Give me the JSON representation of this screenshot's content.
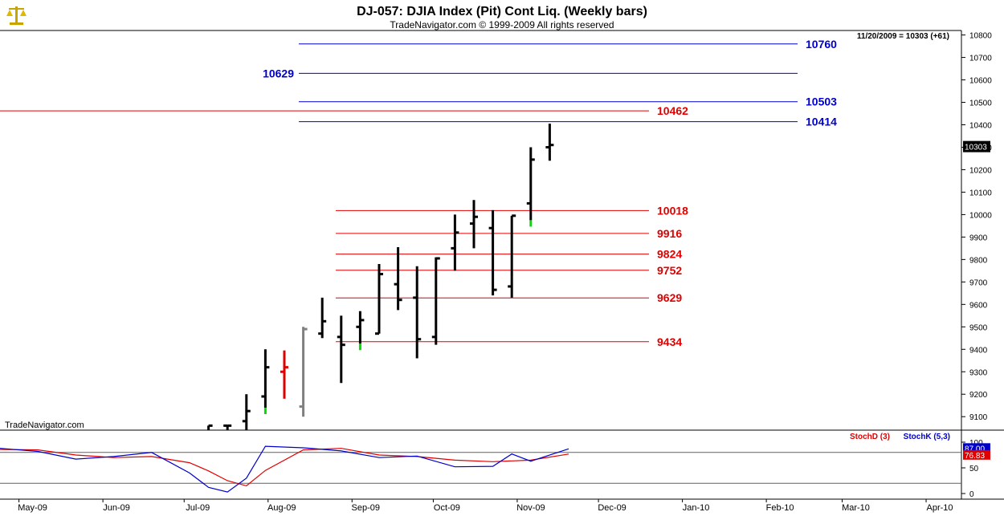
{
  "header": {
    "title": "DJ-057:  DJIA Index (Pit) Cont Liq.  (Weekly bars)",
    "copyright": "TradeNavigator.com © 1999-2009 All rights reserved"
  },
  "watermark": "TradeNavigator.com",
  "last_info": "11/20/2009 = 10303 (+61)",
  "last_price_label": "10303",
  "indicator_legend": {
    "stoch_d": "StochD (3)",
    "stoch_k": "StochK (5,3)"
  },
  "colors": {
    "blue_level": "#0000cc",
    "red_level": "#e00000",
    "bar": "#000000",
    "bar_red": "#e00000",
    "bar_gray": "#808080",
    "bar_green": "#00dd00",
    "stoch_d": "#e00000",
    "stoch_k": "#0000cc"
  },
  "chart_data": [
    {
      "type": "ohlc",
      "title": "DJ-057:  DJIA Index (Pit) Cont Liq.  (Weekly bars)",
      "ylim": [
        9040,
        10820
      ],
      "y_ticks": [
        9100,
        9200,
        9300,
        9400,
        9500,
        9600,
        9700,
        9800,
        9900,
        10000,
        10100,
        10200,
        10300,
        10400,
        10500,
        10600,
        10700,
        10800
      ],
      "x_labels": [
        "May-09",
        "Jun-09",
        "Jul-09",
        "Aug-09",
        "Sep-09",
        "Oct-09",
        "Nov-09",
        "Dec-09",
        "Jan-10",
        "Feb-10",
        "Mar-10",
        "Apr-10"
      ],
      "x_range": [
        "2009-04-24",
        "2010-04-09"
      ],
      "bars": [
        {
          "date": "2009-07-10",
          "open": 9020,
          "high": 9060,
          "low": 8990,
          "close": 9060,
          "color": "black"
        },
        {
          "date": "2009-07-17",
          "open": 9060,
          "high": 9060,
          "low": 9030,
          "close": 9060,
          "color": "black"
        },
        {
          "date": "2009-07-24",
          "open": 9080,
          "high": 9200,
          "low": 9030,
          "close": 9125,
          "color": "black"
        },
        {
          "date": "2009-07-31",
          "open": 9190,
          "high": 9400,
          "low": 9140,
          "close": 9320,
          "color": "black",
          "low_tick": "green"
        },
        {
          "date": "2009-08-07",
          "open": 9300,
          "high": 9395,
          "low": 9180,
          "close": 9320,
          "color": "red"
        },
        {
          "date": "2009-08-14",
          "open": 9145,
          "high": 9500,
          "low": 9100,
          "close": 9490,
          "color": "gray"
        },
        {
          "date": "2009-08-21",
          "open": 9470,
          "high": 9630,
          "low": 9450,
          "close": 9525,
          "color": "black"
        },
        {
          "date": "2009-08-28",
          "open": 9455,
          "high": 9550,
          "low": 9250,
          "close": 9420,
          "color": "black"
        },
        {
          "date": "2009-09-04",
          "open": 9500,
          "high": 9570,
          "low": 9425,
          "close": 9530,
          "color": "black",
          "low_tick": "green"
        },
        {
          "date": "2009-09-11",
          "open": 9470,
          "high": 9780,
          "low": 9470,
          "close": 9735,
          "color": "black"
        },
        {
          "date": "2009-09-18",
          "open": 9690,
          "high": 9855,
          "low": 9575,
          "close": 9620,
          "color": "black"
        },
        {
          "date": "2009-09-25",
          "open": 9630,
          "high": 9770,
          "low": 9360,
          "close": 9445,
          "color": "black"
        },
        {
          "date": "2009-10-02",
          "open": 9455,
          "high": 9810,
          "low": 9420,
          "close": 9805,
          "color": "black"
        },
        {
          "date": "2009-10-09",
          "open": 9850,
          "high": 10000,
          "low": 9750,
          "close": 9920,
          "color": "black"
        },
        {
          "date": "2009-10-16",
          "open": 9960,
          "high": 10065,
          "low": 9850,
          "close": 9990,
          "color": "black"
        },
        {
          "date": "2009-10-23",
          "open": 9940,
          "high": 10020,
          "low": 9640,
          "close": 9665,
          "color": "black"
        },
        {
          "date": "2009-10-30",
          "open": 9680,
          "high": 9995,
          "low": 9630,
          "close": 9995,
          "color": "black"
        },
        {
          "date": "2009-11-06",
          "open": 10050,
          "high": 10300,
          "low": 9975,
          "close": 10245,
          "color": "black",
          "low_tick": "green"
        },
        {
          "date": "2009-11-13",
          "open": 10300,
          "high": 10405,
          "low": 10240,
          "close": 10310,
          "color": "black"
        }
      ],
      "levels_blue": [
        10760,
        10629,
        10503,
        10414
      ],
      "levels_red": [
        10462,
        10018,
        9916,
        9824,
        9752,
        9629,
        9434
      ],
      "last_price": 10303
    },
    {
      "type": "line",
      "title": "",
      "ylim": [
        0,
        100
      ],
      "y_ticks": [
        0,
        50,
        100
      ],
      "horizontal_lines": [
        20,
        80
      ],
      "value_labels": {
        "stoch_k": "87.00",
        "stoch_d": "76.83"
      },
      "series": [
        {
          "name": "StochD (3)",
          "dates": [
            "2009-04-24",
            "2009-05-08",
            "2009-05-22",
            "2009-06-05",
            "2009-06-19",
            "2009-07-03",
            "2009-07-10",
            "2009-07-17",
            "2009-07-24",
            "2009-07-31",
            "2009-08-14",
            "2009-08-28",
            "2009-09-11",
            "2009-09-25",
            "2009-10-09",
            "2009-10-23",
            "2009-11-06",
            "2009-11-20"
          ],
          "values": [
            86,
            85,
            75,
            70,
            72,
            60,
            44,
            25,
            15,
            45,
            85,
            88,
            75,
            72,
            65,
            62,
            65,
            76.83
          ]
        },
        {
          "name": "StochK (5,3)",
          "dates": [
            "2009-04-24",
            "2009-05-08",
            "2009-05-22",
            "2009-06-05",
            "2009-06-19",
            "2009-07-03",
            "2009-07-10",
            "2009-07-17",
            "2009-07-24",
            "2009-07-31",
            "2009-08-14",
            "2009-08-28",
            "2009-09-11",
            "2009-09-25",
            "2009-10-09",
            "2009-10-23",
            "2009-10-30",
            "2009-11-06",
            "2009-11-20"
          ],
          "values": [
            88,
            82,
            67,
            72,
            80,
            40,
            12,
            3,
            30,
            92,
            89,
            83,
            70,
            73,
            52,
            53,
            77,
            63,
            87.0
          ]
        }
      ]
    }
  ]
}
